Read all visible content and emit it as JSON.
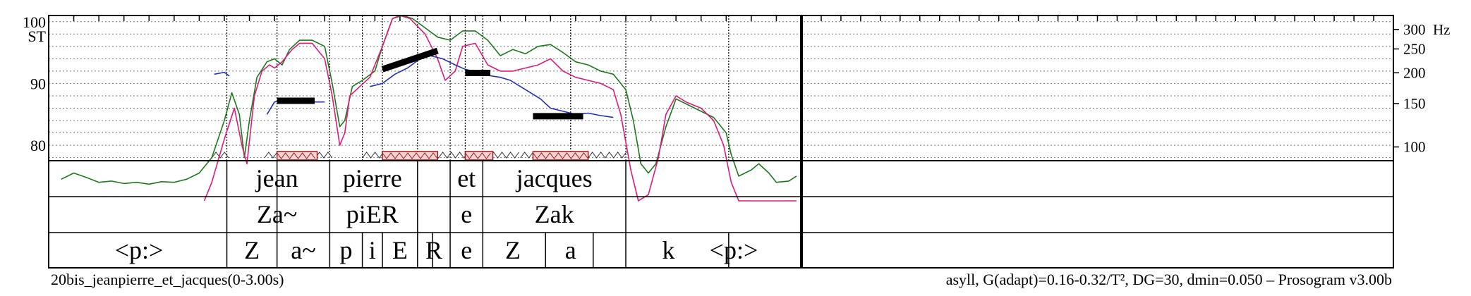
{
  "chart_data": {
    "type": "line",
    "title": "20bis_jeanpierre_et_jacques(0-3.00s)",
    "settings": "asyll, G(adapt)=0.16-0.32/T², DG=30, dmin=0.050 – Prosogram v3.00b",
    "xlim": [
      0,
      3.0
    ],
    "x_split": 3.0,
    "x_panel2_end": 6.0,
    "left_axis": {
      "unit": "ST",
      "ylim": [
        77.5,
        101.0
      ],
      "tick_labels": [
        "100",
        "90",
        "80"
      ],
      "tick_values": [
        100,
        90,
        80
      ],
      "grid_step_st": 2
    },
    "right_axis": {
      "unit": "Hz",
      "tick_labels": [
        "300",
        "250",
        "200",
        "150",
        "100"
      ],
      "tick_values": [
        300,
        250,
        200,
        150,
        100
      ]
    },
    "segment_bounds": [
      0.71,
      0.91,
      1.12,
      1.47,
      1.6,
      1.73,
      2.3
    ],
    "dotted_bounds": [
      0.71,
      0.91,
      1.12,
      1.25,
      1.33,
      1.47,
      1.6,
      1.66,
      1.73,
      2.08,
      2.3,
      2.71
    ],
    "series": [
      {
        "name": "intensity",
        "color": "#1a7a1a",
        "points": [
          [
            0.05,
            74.5
          ],
          [
            0.1,
            75.5
          ],
          [
            0.15,
            74.8
          ],
          [
            0.2,
            74
          ],
          [
            0.25,
            74.2
          ],
          [
            0.3,
            73.8
          ],
          [
            0.35,
            74
          ],
          [
            0.4,
            73.7
          ],
          [
            0.45,
            74.1
          ],
          [
            0.5,
            74
          ],
          [
            0.55,
            74.5
          ],
          [
            0.6,
            75.5
          ],
          [
            0.65,
            78
          ],
          [
            0.7,
            84
          ],
          [
            0.73,
            88.5
          ],
          [
            0.76,
            85
          ],
          [
            0.78,
            78
          ],
          [
            0.8,
            84
          ],
          [
            0.83,
            91
          ],
          [
            0.87,
            93.5
          ],
          [
            0.9,
            94
          ],
          [
            0.93,
            93
          ],
          [
            0.96,
            95.5
          ],
          [
            1.0,
            97
          ],
          [
            1.05,
            97
          ],
          [
            1.1,
            96
          ],
          [
            1.13,
            90
          ],
          [
            1.16,
            83
          ],
          [
            1.18,
            84
          ],
          [
            1.21,
            89.5
          ],
          [
            1.25,
            90.5
          ],
          [
            1.3,
            92
          ],
          [
            1.33,
            96
          ],
          [
            1.37,
            100.5
          ],
          [
            1.41,
            101
          ],
          [
            1.45,
            100.5
          ],
          [
            1.5,
            99
          ],
          [
            1.55,
            97.5
          ],
          [
            1.6,
            97
          ],
          [
            1.65,
            98.5
          ],
          [
            1.7,
            98.5
          ],
          [
            1.75,
            97
          ],
          [
            1.8,
            94.5
          ],
          [
            1.85,
            95.5
          ],
          [
            1.9,
            94.8
          ],
          [
            1.95,
            96
          ],
          [
            2.0,
            96.3
          ],
          [
            2.05,
            95
          ],
          [
            2.1,
            93.5
          ],
          [
            2.15,
            93
          ],
          [
            2.2,
            92
          ],
          [
            2.25,
            91.5
          ],
          [
            2.3,
            89
          ],
          [
            2.33,
            84
          ],
          [
            2.36,
            77
          ],
          [
            2.39,
            75.5
          ],
          [
            2.42,
            77
          ],
          [
            2.46,
            83
          ],
          [
            2.5,
            87.5
          ],
          [
            2.55,
            86.5
          ],
          [
            2.6,
            85.5
          ],
          [
            2.65,
            84.5
          ],
          [
            2.7,
            82
          ],
          [
            2.72,
            78.5
          ],
          [
            2.75,
            75
          ],
          [
            2.8,
            76
          ],
          [
            2.83,
            77
          ],
          [
            2.87,
            75.5
          ],
          [
            2.9,
            74
          ],
          [
            2.95,
            74.2
          ],
          [
            2.98,
            75
          ]
        ]
      },
      {
        "name": "pitch",
        "color": "#e0197a",
        "points": [
          [
            0.62,
            71
          ],
          [
            0.65,
            74
          ],
          [
            0.7,
            81
          ],
          [
            0.74,
            86
          ],
          [
            0.77,
            80
          ],
          [
            0.79,
            77
          ],
          [
            0.82,
            88
          ],
          [
            0.85,
            92
          ],
          [
            0.88,
            93
          ],
          [
            0.9,
            92.5
          ],
          [
            0.93,
            93.5
          ],
          [
            0.97,
            95.5
          ],
          [
            1.0,
            96.5
          ],
          [
            1.05,
            96.5
          ],
          [
            1.1,
            94
          ],
          [
            1.13,
            88
          ],
          [
            1.16,
            80
          ],
          [
            1.18,
            82
          ],
          [
            1.2,
            88
          ],
          [
            1.24,
            89.5
          ],
          [
            1.28,
            91
          ],
          [
            1.33,
            96
          ],
          [
            1.37,
            100.5
          ],
          [
            1.4,
            101
          ],
          [
            1.44,
            100.5
          ],
          [
            1.5,
            98
          ],
          [
            1.55,
            94
          ],
          [
            1.58,
            90.5
          ],
          [
            1.62,
            92
          ],
          [
            1.65,
            96
          ],
          [
            1.7,
            96.5
          ],
          [
            1.75,
            93
          ],
          [
            1.8,
            92
          ],
          [
            1.85,
            92
          ],
          [
            1.9,
            92.5
          ],
          [
            1.95,
            93
          ],
          [
            2.0,
            94
          ],
          [
            2.05,
            92
          ],
          [
            2.1,
            91
          ],
          [
            2.15,
            90.5
          ],
          [
            2.2,
            90
          ],
          [
            2.25,
            89
          ],
          [
            2.28,
            85
          ],
          [
            2.32,
            76
          ],
          [
            2.35,
            71
          ],
          [
            2.39,
            72
          ],
          [
            2.43,
            78
          ],
          [
            2.46,
            85
          ],
          [
            2.5,
            88
          ],
          [
            2.54,
            87
          ],
          [
            2.6,
            86
          ],
          [
            2.65,
            84
          ],
          [
            2.69,
            80
          ],
          [
            2.72,
            74
          ],
          [
            2.75,
            71
          ],
          [
            2.9,
            71
          ],
          [
            2.98,
            71
          ]
        ]
      },
      {
        "name": "f0",
        "color": "#1f2fbf",
        "segments": [
          [
            [
              0.66,
              91.5
            ],
            [
              0.7,
              91.8
            ],
            [
              0.72,
              91.2
            ]
          ],
          [
            [
              0.87,
              85
            ],
            [
              0.9,
              87
            ],
            [
              0.95,
              87.5
            ],
            [
              1.0,
              87.2
            ],
            [
              1.05,
              87
            ],
            [
              1.1,
              87
            ]
          ],
          [
            [
              1.28,
              89.5
            ],
            [
              1.33,
              90
            ],
            [
              1.38,
              91.5
            ],
            [
              1.43,
              92.5
            ],
            [
              1.48,
              94
            ],
            [
              1.52,
              94.5
            ],
            [
              1.57,
              94
            ],
            [
              1.62,
              93
            ],
            [
              1.66,
              92.3
            ],
            [
              1.71,
              91.8
            ],
            [
              1.75,
              91.3
            ],
            [
              1.8,
              91
            ],
            [
              1.84,
              90.5
            ],
            [
              1.88,
              89.5
            ],
            [
              1.92,
              88.5
            ],
            [
              1.96,
              87.5
            ],
            [
              2.0,
              86
            ],
            [
              2.05,
              85.5
            ],
            [
              2.1,
              85
            ],
            [
              2.15,
              85.2
            ],
            [
              2.2,
              84.8
            ],
            [
              2.25,
              84.5
            ]
          ]
        ]
      }
    ],
    "stylizations": [
      {
        "x1": 0.91,
        "y1": 87.2,
        "x2": 1.06,
        "y2": 87.2
      },
      {
        "x1": 1.33,
        "y1": 92.3,
        "x2": 1.55,
        "y2": 95.3
      },
      {
        "x1": 1.66,
        "y1": 91.7,
        "x2": 1.76,
        "y2": 91.7
      },
      {
        "x1": 1.93,
        "y1": 84.7,
        "x2": 2.13,
        "y2": 84.7
      }
    ],
    "nuclei": [
      [
        0.91,
        1.07
      ],
      [
        1.33,
        1.55
      ],
      [
        1.66,
        1.77
      ],
      [
        1.93,
        2.15
      ]
    ],
    "zigzag_ranges": [
      [
        0.65,
        0.73
      ],
      [
        0.86,
        1.13
      ],
      [
        1.25,
        1.88
      ],
      [
        1.88,
        2.31
      ]
    ],
    "tiers": [
      {
        "name": "word",
        "labels": [
          {
            "text": "jean",
            "x": 0.91
          },
          {
            "text": "pierre",
            "x": 1.29
          },
          {
            "text": "et",
            "x": 1.665
          },
          {
            "text": "jacques",
            "x": 2.015
          }
        ]
      },
      {
        "name": "syllable",
        "labels": [
          {
            "text": "Za~",
            "x": 0.91
          },
          {
            "text": "piER",
            "x": 1.29
          },
          {
            "text": "e",
            "x": 1.665
          },
          {
            "text": "Zak",
            "x": 2.015
          }
        ]
      },
      {
        "name": "phone",
        "labels": [
          {
            "text": "<p:>",
            "x": 0.36
          },
          {
            "text": "Z",
            "x": 0.81
          },
          {
            "text": "a~",
            "x": 1.015
          },
          {
            "text": "p",
            "x": 1.185
          },
          {
            "text": "i",
            "x": 1.29
          },
          {
            "text": "E",
            "x": 1.4
          },
          {
            "text": "R",
            "x": 1.535
          },
          {
            "text": "e",
            "x": 1.665
          },
          {
            "text": "Z",
            "x": 1.85
          },
          {
            "text": "a",
            "x": 2.08
          },
          {
            "text": "k",
            "x": 2.47
          },
          {
            "text": "<p:>",
            "x": 2.73
          }
        ]
      }
    ],
    "phone_bounds": [
      0.71,
      0.91,
      1.12,
      1.25,
      1.33,
      1.47,
      1.53,
      1.6,
      1.73,
      1.98,
      2.17,
      2.3,
      2.71
    ]
  }
}
